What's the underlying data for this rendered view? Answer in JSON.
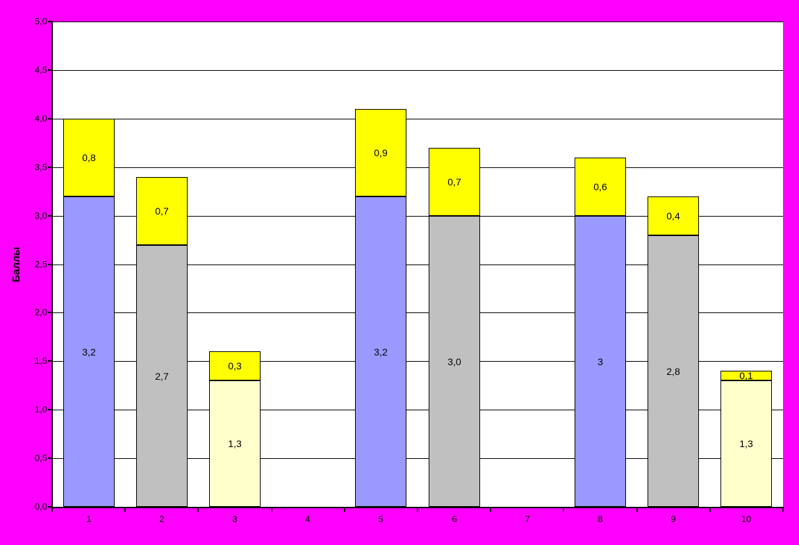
{
  "chart_data": {
    "type": "bar",
    "stacked": true,
    "title": "",
    "xlabel": "",
    "ylabel": "Баллы",
    "ylim": [
      0,
      5
    ],
    "ytick_step": 0.5,
    "grid": true,
    "legend": "none",
    "background_color": "#FF00FF",
    "plot_background_color": "#FFFFFF",
    "gridline_color": "#000000",
    "axis_color": "#000000",
    "segment_colors": {
      "blue": "#9999FF",
      "gray": "#C0C0C0",
      "cream": "#FFFFCC",
      "yellow": "#FFFF00"
    },
    "yticks": [
      {
        "value": 0.0,
        "label": "0,0"
      },
      {
        "value": 0.5,
        "label": "0,5"
      },
      {
        "value": 1.0,
        "label": "1,0"
      },
      {
        "value": 1.5,
        "label": "1,5"
      },
      {
        "value": 2.0,
        "label": "2,0"
      },
      {
        "value": 2.5,
        "label": "2,5"
      },
      {
        "value": 3.0,
        "label": "3,0"
      },
      {
        "value": 3.5,
        "label": "3,5"
      },
      {
        "value": 4.0,
        "label": "4,0"
      },
      {
        "value": 4.5,
        "label": "4,5"
      },
      {
        "value": 5.0,
        "label": "5,0"
      }
    ],
    "categories": [
      "1",
      "2",
      "3",
      "4",
      "5",
      "6",
      "7",
      "8",
      "9",
      "10"
    ],
    "bars": [
      {
        "category": "1",
        "segments": [
          {
            "value": 3.2,
            "label": "3,2",
            "color": "#9999FF"
          },
          {
            "value": 0.8,
            "label": "0,8",
            "color": "#FFFF00"
          }
        ]
      },
      {
        "category": "2",
        "segments": [
          {
            "value": 2.7,
            "label": "2,7",
            "color": "#C0C0C0"
          },
          {
            "value": 0.7,
            "label": "0,7",
            "color": "#FFFF00"
          }
        ]
      },
      {
        "category": "3",
        "segments": [
          {
            "value": 1.3,
            "label": "1,3",
            "color": "#FFFFCC"
          },
          {
            "value": 0.3,
            "label": "0,3",
            "color": "#FFFF00"
          }
        ]
      },
      {
        "category": "4",
        "segments": []
      },
      {
        "category": "5",
        "segments": [
          {
            "value": 3.2,
            "label": "3,2",
            "color": "#9999FF"
          },
          {
            "value": 0.9,
            "label": "0,9",
            "color": "#FFFF00"
          }
        ]
      },
      {
        "category": "6",
        "segments": [
          {
            "value": 3.0,
            "label": "3,0",
            "color": "#C0C0C0"
          },
          {
            "value": 0.7,
            "label": "0,7",
            "color": "#FFFF00"
          }
        ]
      },
      {
        "category": "7",
        "segments": []
      },
      {
        "category": "8",
        "segments": [
          {
            "value": 3.0,
            "label": "3",
            "color": "#9999FF"
          },
          {
            "value": 0.6,
            "label": "0,6",
            "color": "#FFFF00"
          }
        ]
      },
      {
        "category": "9",
        "segments": [
          {
            "value": 2.8,
            "label": "2,8",
            "color": "#C0C0C0"
          },
          {
            "value": 0.4,
            "label": "0,4",
            "color": "#FFFF00"
          }
        ]
      },
      {
        "category": "10",
        "segments": [
          {
            "value": 1.3,
            "label": "1,3",
            "color": "#FFFFCC"
          },
          {
            "value": 0.1,
            "label": "0,1",
            "color": "#FFFF00"
          }
        ]
      }
    ]
  }
}
